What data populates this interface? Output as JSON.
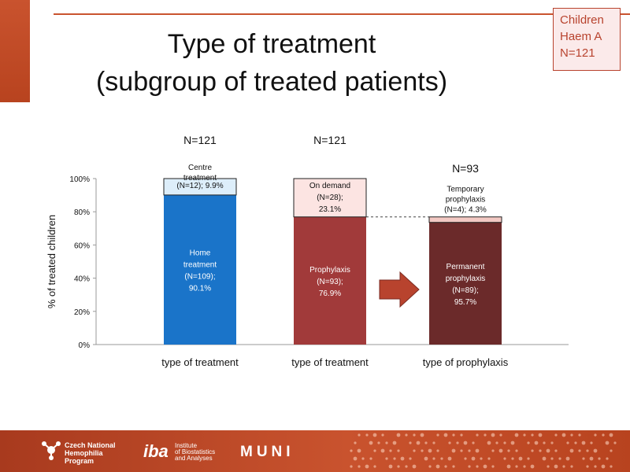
{
  "title": {
    "line1": "Type of treatment",
    "line2": "(subgroup of treated patients)"
  },
  "corner_box": {
    "line1": "Children",
    "line2": "Haem A",
    "line3": "N=121"
  },
  "chart_data": {
    "type": "bar",
    "stacked": true,
    "ylabel": "% of treated children",
    "ylim": [
      0,
      100
    ],
    "yticks": [
      "0%",
      "20%",
      "40%",
      "60%",
      "80%",
      "100%"
    ],
    "grid": false,
    "bars": [
      {
        "n_label": "N=121",
        "category": "type of treatment",
        "segments": [
          {
            "value": 90.1,
            "label_lines": [
              "Home",
              "treatment",
              "(N=109);",
              "90.1%"
            ],
            "color": "#1a74c9",
            "label_color": "#ffffff"
          },
          {
            "value": 9.9,
            "label_lines": [
              "(N=12); 9.9%"
            ],
            "above_lines": [
              "Centre",
              "treatment"
            ],
            "color": "#ddeefa",
            "label_color": "#111111"
          }
        ]
      },
      {
        "n_label": "N=121",
        "category": "type of treatment",
        "segments": [
          {
            "value": 76.9,
            "label_lines": [
              "Prophylaxis",
              "(N=93);",
              "76.9%"
            ],
            "color": "#a13a3a",
            "label_color": "#ffffff"
          },
          {
            "value": 23.1,
            "label_lines": [
              "On demand",
              "(N=28);",
              "23.1%"
            ],
            "color": "#fce4e2",
            "label_color": "#111111"
          }
        ]
      },
      {
        "n_label": "N=93",
        "category": "type of prophylaxis",
        "segments": [
          {
            "value": 73.6,
            "label_lines": [
              "Permanent",
              "prophylaxis",
              "(N=89);",
              "95.7%"
            ],
            "color": "#6b2a2a",
            "label_color": "#ffffff"
          },
          {
            "value": 3.3,
            "label_lines": [],
            "above_lines": [
              "Temporary",
              "prophylaxis",
              "(N=4); 4.3%"
            ],
            "color": "#f3c8c3",
            "label_color": "#111111"
          }
        ]
      }
    ]
  },
  "footer": {
    "nat_line1": "Czech National",
    "nat_line2": "Hemophilia",
    "nat_line3": "Program",
    "iba_logo": "iba",
    "iba_line1": "Institute",
    "iba_line2": "of Biostatistics",
    "iba_line3": "and Analyses",
    "muni_logo": "MUNI"
  },
  "colors": {
    "accent": "#c9532e",
    "arrow": "#b8432e"
  }
}
